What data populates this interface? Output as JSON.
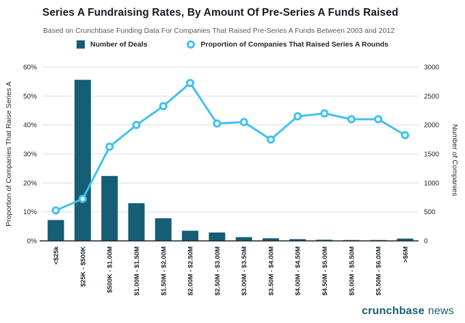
{
  "header": {
    "title": "Series A Fundraising Rates, By Amount Of Pre-Series A Funds Raised",
    "subtitle": "Based on Crunchbase Funding Data For Companies That Raised Pre-Series A Funds Between 2003 and 2012"
  },
  "legend": [
    {
      "label": "Number of Deals",
      "marker": "square",
      "color": "#155e75"
    },
    {
      "label": "Proportion of Companies That Raised Series A Rounds",
      "marker": "circle",
      "color": "#41c0f2"
    }
  ],
  "footer": {
    "brand_bold": "crunchbase",
    "brand_light": "news"
  },
  "chart_data": {
    "type": "bar+line",
    "categories": [
      "<$25k",
      "$25K - $500K",
      "$500K - $1.00M",
      "$1.00M - $1.50M",
      "$1.50M - $2.00M",
      "$2.00M - $2.50M",
      "$2.50M - $3.00M",
      "$3.00M - $3.50M",
      "$3.50M - $4.00M",
      "$4.00M - $4.50M",
      "$4.50M - $5.00M",
      "$5.00M - $5.50M",
      "$5.50M - $6.00M",
      ">$6M"
    ],
    "series": [
      {
        "name": "Number of Deals",
        "type": "bar",
        "axis": "right",
        "color": "#155e75",
        "values": [
          360,
          2780,
          1120,
          650,
          390,
          175,
          145,
          65,
          45,
          30,
          20,
          15,
          15,
          40
        ]
      },
      {
        "name": "Proportion of Companies That Raised Series A Rounds",
        "type": "line",
        "axis": "left",
        "color": "#41c0f2",
        "marker_fill": "#ffffff",
        "values": [
          10.5,
          14.5,
          32.5,
          40,
          46.5,
          54.5,
          40.5,
          41,
          35,
          43,
          44,
          42,
          42,
          36.5
        ]
      }
    ],
    "left_axis": {
      "label": "Proportion of Companies That Raise Series A",
      "ticks": [
        "0%",
        "10%",
        "20%",
        "30%",
        "40%",
        "50%",
        "60%"
      ],
      "min": 0,
      "max": 60
    },
    "right_axis": {
      "label": "Number of Companies",
      "ticks": [
        "0",
        "500",
        "1000",
        "1500",
        "2000",
        "2500",
        "3000"
      ],
      "min": 0,
      "max": 3000
    },
    "grid": true,
    "grid_color": "#dddddd",
    "axis_line_color": "#1d242b",
    "legend_position": "top"
  }
}
